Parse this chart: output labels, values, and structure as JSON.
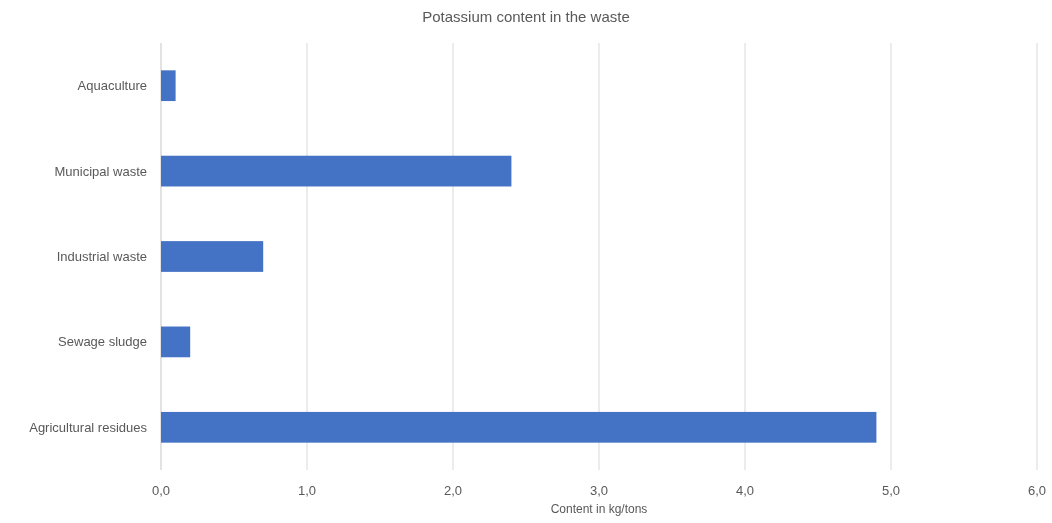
{
  "chart_data": {
    "type": "bar",
    "title": "Potassium content in the waste",
    "xlabel": "Content in kg/tons",
    "orientation": "horizontal",
    "categories": [
      "Aquaculture",
      "Municipal waste",
      "Industrial waste",
      "Sewage sludge",
      "Agricultural residues"
    ],
    "values": [
      0.1,
      2.4,
      0.7,
      0.2,
      4.9
    ],
    "color": "#4472c4",
    "xlim": [
      0,
      6
    ],
    "xticks": [
      {
        "value": 0,
        "label": "0,0"
      },
      {
        "value": 1,
        "label": "1,0"
      },
      {
        "value": 2,
        "label": "2,0"
      },
      {
        "value": 3,
        "label": "3,0"
      },
      {
        "value": 4,
        "label": "4,0"
      },
      {
        "value": 5,
        "label": "5,0"
      },
      {
        "value": 6,
        "label": "6,0"
      }
    ],
    "grid": "x"
  }
}
